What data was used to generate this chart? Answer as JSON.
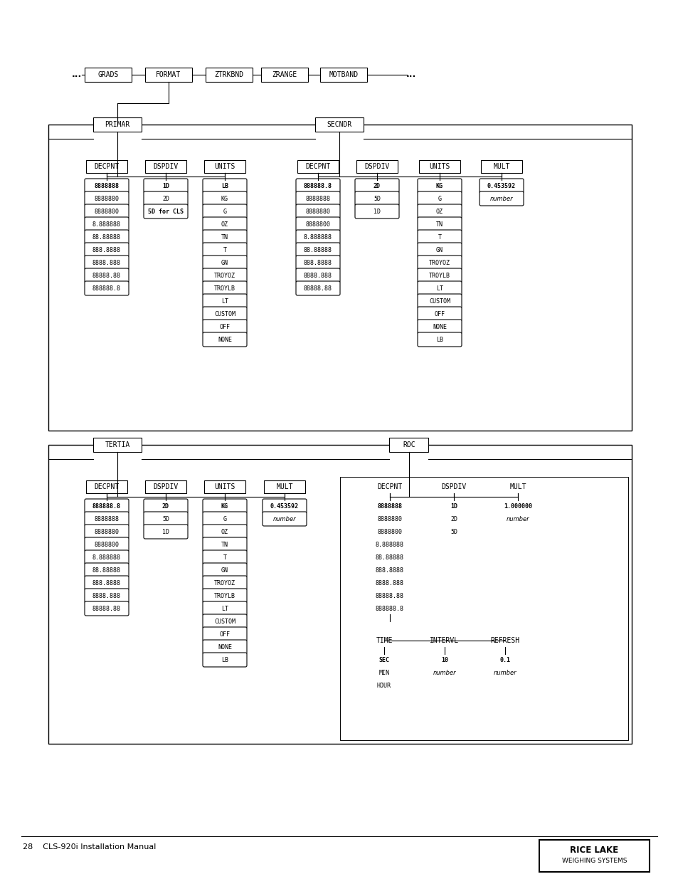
{
  "bg_color": "#ffffff",
  "page_text": "28    CLS-920i Installation Manual",
  "primar_decpnt_items": [
    "8888888",
    "8888880",
    "8888800",
    "8.888888",
    "88.88888",
    "888.8888",
    "8888.888",
    "88888.88",
    "888888.8"
  ],
  "primar_decpnt_bold": [
    0
  ],
  "primar_dspdiv_items": [
    "1D",
    "2D",
    "5D for CLS"
  ],
  "primar_dspdiv_bold": [
    0,
    2
  ],
  "primar_units_items": [
    "LB",
    "KG",
    "G",
    "OZ",
    "TN",
    "T",
    "GN",
    "TROYOZ",
    "TROYLB",
    "LT",
    "CUSTOM",
    "OFF",
    "NONE"
  ],
  "primar_units_bold": [
    0
  ],
  "secndr_decpnt_items": [
    "888888.8",
    "8888888",
    "8888880",
    "8888800",
    "8.888888",
    "88.88888",
    "888.8888",
    "8888.888",
    "88888.88"
  ],
  "secndr_decpnt_bold": [
    0
  ],
  "secndr_dspdiv_items": [
    "2D",
    "5D",
    "1D"
  ],
  "secndr_dspdiv_bold": [
    0
  ],
  "secndr_units_items": [
    "KG",
    "G",
    "OZ",
    "TN",
    "T",
    "GN",
    "TROYOZ",
    "TROYLB",
    "LT",
    "CUSTOM",
    "OFF",
    "NONE",
    "LB"
  ],
  "secndr_units_bold": [
    0
  ],
  "secndr_mult_items": [
    "0.453592",
    "number"
  ],
  "secndr_mult_bold": [
    0
  ],
  "tertia_decpnt_items": [
    "888888.8",
    "8888888",
    "8888880",
    "8888800",
    "8.888888",
    "88.88888",
    "888.8888",
    "8888.888",
    "88888.88"
  ],
  "tertia_decpnt_bold": [
    0
  ],
  "tertia_dspdiv_items": [
    "2D",
    "5D",
    "1D"
  ],
  "tertia_dspdiv_bold": [
    0
  ],
  "tertia_units_items": [
    "KG",
    "G",
    "OZ",
    "TN",
    "T",
    "GN",
    "TROYOZ",
    "TROYLB",
    "LT",
    "CUSTOM",
    "OFF",
    "NONE",
    "LB"
  ],
  "tertia_units_bold": [
    0
  ],
  "tertia_mult_items": [
    "0.453592",
    "number"
  ],
  "tertia_mult_bold": [
    0
  ],
  "roc_decpnt_items": [
    "8888888",
    "8888880",
    "8888800",
    "8.888888",
    "88.88888",
    "888.8888",
    "8888.888",
    "88888.88",
    "888888.8"
  ],
  "roc_decpnt_bold": [
    0
  ],
  "roc_dspdiv_items": [
    "1D",
    "2D",
    "5D"
  ],
  "roc_dspdiv_bold": [
    0
  ],
  "roc_mult_items": [
    "1.000000",
    "number"
  ],
  "roc_mult_bold": [
    0
  ]
}
